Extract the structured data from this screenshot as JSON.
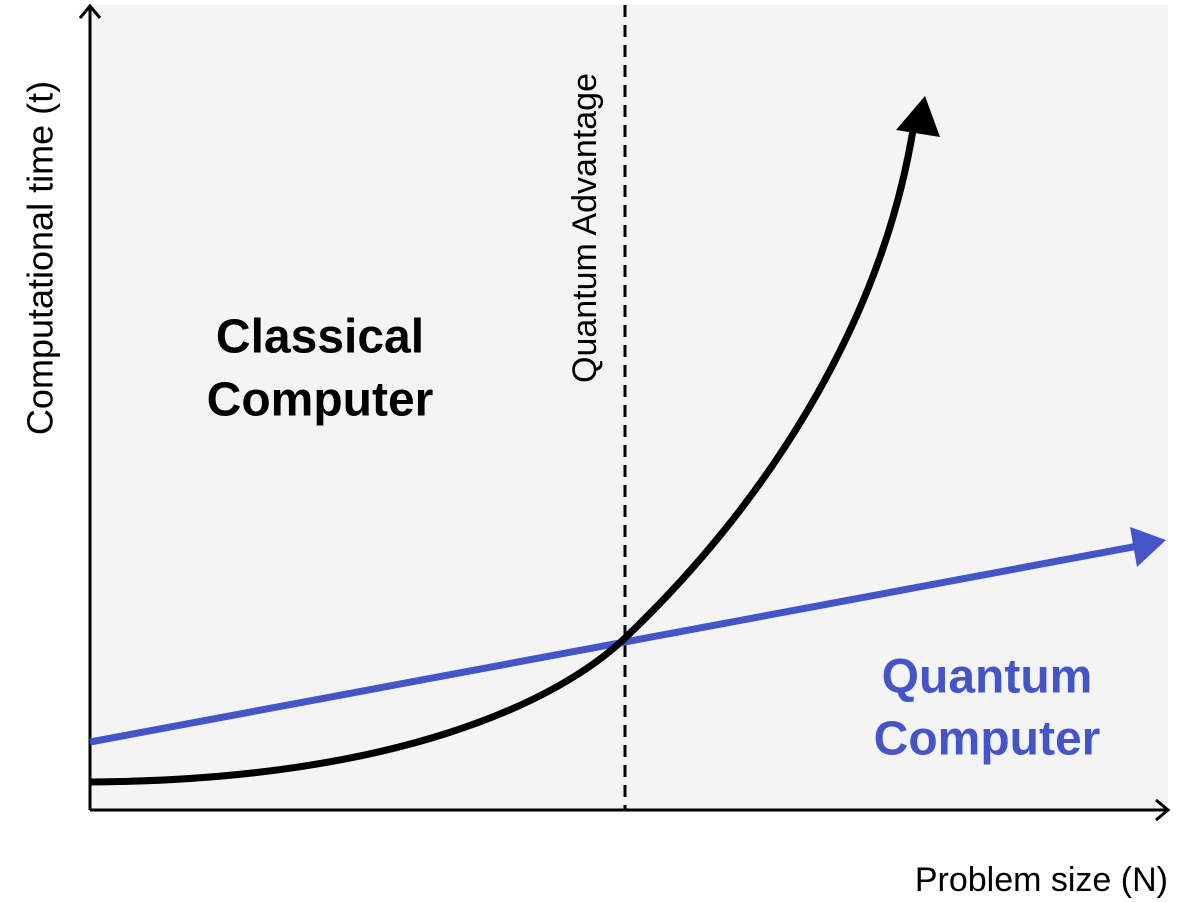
{
  "axes": {
    "y_label": "Computational time (t)",
    "x_label": "Problem size (N)"
  },
  "marker": {
    "label": "Quantum Advantage"
  },
  "labels": {
    "classical": [
      "Classical",
      "Computer"
    ],
    "quantum": [
      "Quantum",
      "Computer"
    ]
  }
}
